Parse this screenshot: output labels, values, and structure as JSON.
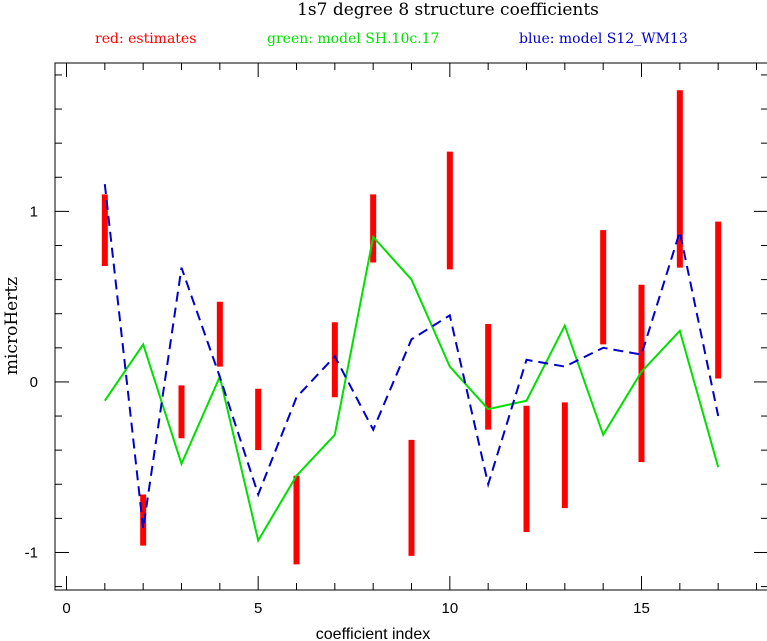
{
  "chart_data": {
    "type": "line",
    "title": "1s7 degree 8 structure coefficients",
    "xlabel": "coefficient index",
    "ylabel": "microHertz",
    "xlim": [
      -0.3,
      18.3
    ],
    "ylim": [
      -1.22,
      1.87
    ],
    "xticks": [
      0,
      5,
      10,
      15
    ],
    "yticks": [
      -1,
      0,
      1
    ],
    "legend": [
      {
        "text": "red: estimates",
        "color": "#ff0000"
      },
      {
        "text": "green: model SH.10c.17",
        "color": "#00e000"
      },
      {
        "text": "blue: model S12_WM13",
        "color": "#0000cc"
      }
    ],
    "estimates": {
      "name": "estimates",
      "color": "#ff0000",
      "x": [
        1,
        2,
        3,
        4,
        5,
        6,
        7,
        8,
        9,
        10,
        11,
        12,
        13,
        14,
        15,
        16,
        17
      ],
      "low": [
        0.68,
        -0.96,
        -0.33,
        0.09,
        -0.4,
        -1.07,
        -0.09,
        0.7,
        -1.02,
        0.66,
        -0.28,
        -0.88,
        -0.74,
        0.22,
        -0.47,
        0.67,
        0.02
      ],
      "high": [
        1.1,
        -0.66,
        -0.02,
        0.47,
        -0.04,
        -0.55,
        0.35,
        1.1,
        -0.34,
        1.35,
        0.34,
        -0.14,
        -0.12,
        0.89,
        0.57,
        1.71,
        0.94
      ]
    },
    "series": [
      {
        "name": "model SH.10c.17",
        "color": "#00e000",
        "dash": "solid",
        "x": [
          1,
          2,
          3,
          4,
          5,
          6,
          7,
          8,
          9,
          10,
          11,
          12,
          13,
          14,
          15,
          16,
          17
        ],
        "values": [
          -0.11,
          0.22,
          -0.48,
          0.03,
          -0.93,
          -0.55,
          -0.31,
          0.85,
          0.6,
          0.09,
          -0.16,
          -0.11,
          0.33,
          -0.31,
          0.06,
          0.3,
          -0.5
        ]
      },
      {
        "name": "model S12_WM13",
        "color": "#0000cc",
        "dash": "dashed",
        "x": [
          1,
          2,
          3,
          4,
          5,
          6,
          7,
          8,
          9,
          10,
          11,
          12,
          13,
          14,
          15,
          16,
          17
        ],
        "values": [
          1.16,
          -0.86,
          0.67,
          0.03,
          -0.66,
          -0.09,
          0.15,
          -0.28,
          0.25,
          0.39,
          -0.6,
          0.13,
          0.09,
          0.2,
          0.16,
          0.88,
          -0.2
        ]
      }
    ]
  }
}
